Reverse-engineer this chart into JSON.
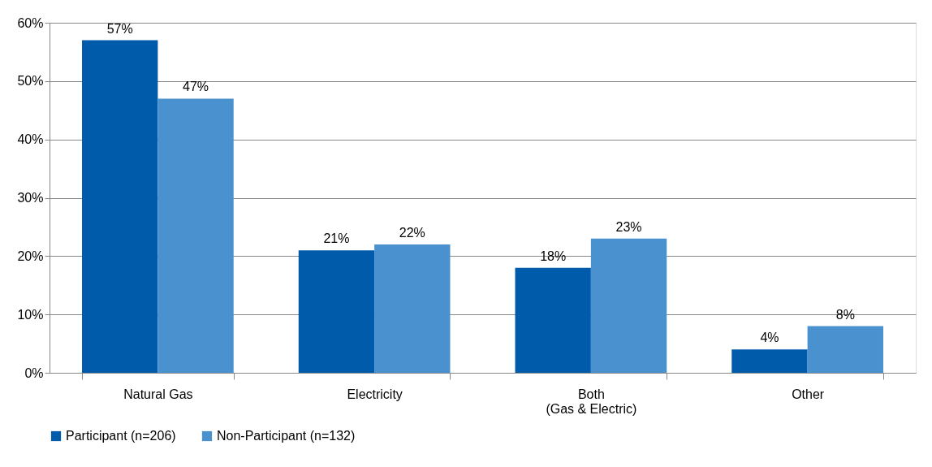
{
  "chart_data": {
    "type": "bar",
    "categories": [
      "Natural Gas",
      "Electricity",
      "Both\n(Gas & Electric)",
      "Other"
    ],
    "series": [
      {
        "name": "Participant (n=206)",
        "color": "#005bab",
        "values": [
          57,
          21,
          18,
          4
        ],
        "value_labels": [
          "57%",
          "21%",
          "18%",
          "4%"
        ]
      },
      {
        "name": "Non-Participant (n=132)",
        "color": "#4a91d0",
        "values": [
          47,
          22,
          23,
          8
        ],
        "value_labels": [
          "47%",
          "22%",
          "23%",
          "8%"
        ]
      }
    ],
    "ylim": [
      0,
      60
    ],
    "yticks": [
      {
        "value": 0,
        "label": "0%"
      },
      {
        "value": 10,
        "label": "10%"
      },
      {
        "value": 20,
        "label": "20%"
      },
      {
        "value": 30,
        "label": "30%"
      },
      {
        "value": 40,
        "label": "40%"
      },
      {
        "value": 50,
        "label": "50%"
      },
      {
        "value": 60,
        "label": "60%"
      }
    ],
    "grid": "y",
    "legend": "bottom"
  }
}
